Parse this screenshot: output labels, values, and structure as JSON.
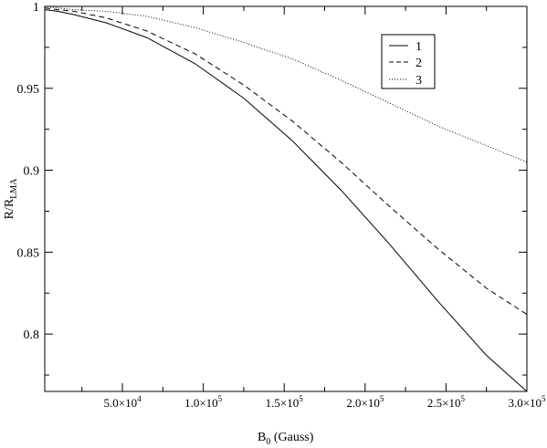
{
  "chart_data": {
    "type": "line",
    "xlabel": {
      "main": "B",
      "sub": "0",
      "rest": " (Gauss)"
    },
    "ylabel": {
      "main": "R/R",
      "sub": "LMA"
    },
    "xlim": [
      2000,
      300000
    ],
    "ylim": [
      0.765,
      1.0
    ],
    "xticks": [
      {
        "value": 50000,
        "label": "5.0×10",
        "exp": "4"
      },
      {
        "value": 100000,
        "label": "1.0×10",
        "exp": "5"
      },
      {
        "value": 150000,
        "label": "1.5×10",
        "exp": "5"
      },
      {
        "value": 200000,
        "label": "2.0×10",
        "exp": "5"
      },
      {
        "value": 250000,
        "label": "2.5×10",
        "exp": "5"
      },
      {
        "value": 300000,
        "label": "3.0×10",
        "exp": "5"
      }
    ],
    "yticks": [
      {
        "value": 0.8,
        "label": "0.8"
      },
      {
        "value": 0.85,
        "label": "0.85"
      },
      {
        "value": 0.9,
        "label": "0.9"
      },
      {
        "value": 0.95,
        "label": "0.95"
      },
      {
        "value": 1.0,
        "label": "1"
      }
    ],
    "legend_position": "top-right",
    "series": [
      {
        "name": "1",
        "style": "solid",
        "x": [
          2000,
          10000,
          20000,
          40000,
          65000,
          95000,
          125000,
          155000,
          185000,
          215000,
          245000,
          275000,
          300000
        ],
        "y": [
          0.998,
          0.997,
          0.995,
          0.99,
          0.981,
          0.965,
          0.944,
          0.918,
          0.888,
          0.855,
          0.82,
          0.787,
          0.765
        ]
      },
      {
        "name": "2",
        "style": "dashed",
        "x": [
          2000,
          10000,
          20000,
          40000,
          65000,
          95000,
          125000,
          155000,
          185000,
          215000,
          245000,
          275000,
          300000
        ],
        "y": [
          0.999,
          0.998,
          0.997,
          0.993,
          0.985,
          0.971,
          0.952,
          0.93,
          0.905,
          0.878,
          0.852,
          0.828,
          0.812
        ]
      },
      {
        "name": "3",
        "style": "dotted",
        "x": [
          2000,
          10000,
          20000,
          40000,
          65000,
          95000,
          125000,
          155000,
          185000,
          215000,
          245000,
          275000,
          300000
        ],
        "y": [
          1.0,
          0.999,
          0.998,
          0.997,
          0.994,
          0.987,
          0.978,
          0.968,
          0.955,
          0.941,
          0.927,
          0.915,
          0.905
        ]
      }
    ]
  }
}
